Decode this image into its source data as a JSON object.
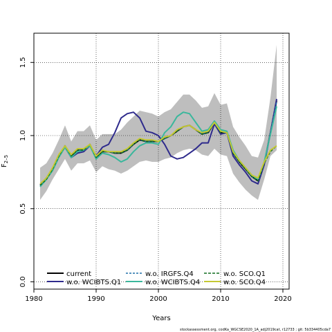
{
  "chart_data": {
    "type": "line",
    "xlabel": "Years",
    "ylabel": "F",
    "ylabel_sub": "2–5",
    "xlim": [
      1980,
      2021
    ],
    "ylim": [
      -0.05,
      1.7
    ],
    "xticks": [
      1980,
      1990,
      2000,
      2010,
      2020
    ],
    "yticks": [
      0.0,
      0.5,
      1.0,
      1.5
    ],
    "ytick_labels": [
      "0.0",
      "0.5",
      "1.0",
      "1.5"
    ],
    "grid": true,
    "legend_position": "bottom-left",
    "footer": "stockassessment.org, codKa_WGCSE2020_1A_adj2019cat, r12733 ; git: 5b334405cda7",
    "x": [
      1981,
      1982,
      1983,
      1984,
      1985,
      1986,
      1987,
      1988,
      1989,
      1990,
      1991,
      1992,
      1993,
      1994,
      1995,
      1996,
      1997,
      1998,
      1999,
      2000,
      2001,
      2002,
      2003,
      2004,
      2005,
      2006,
      2007,
      2008,
      2009,
      2010,
      2011,
      2012,
      2013,
      2014,
      2015,
      2016,
      2017,
      2018,
      2019
    ],
    "confidence_band": {
      "upper": [
        0.78,
        0.81,
        0.88,
        0.97,
        1.07,
        0.96,
        1.03,
        1.03,
        1.07,
        0.97,
        1.01,
        1.01,
        1.01,
        1.04,
        1.09,
        1.13,
        1.17,
        1.16,
        1.15,
        1.13,
        1.16,
        1.18,
        1.23,
        1.28,
        1.28,
        1.24,
        1.19,
        1.2,
        1.29,
        1.21,
        1.22,
        1.06,
        0.99,
        0.93,
        0.86,
        0.85,
        0.97,
        1.26,
        1.62
      ],
      "lower": [
        0.56,
        0.62,
        0.7,
        0.77,
        0.84,
        0.76,
        0.81,
        0.81,
        0.83,
        0.75,
        0.79,
        0.77,
        0.76,
        0.74,
        0.76,
        0.79,
        0.82,
        0.83,
        0.82,
        0.82,
        0.84,
        0.85,
        0.88,
        0.9,
        0.91,
        0.9,
        0.87,
        0.86,
        0.91,
        0.87,
        0.86,
        0.74,
        0.68,
        0.63,
        0.59,
        0.56,
        0.7,
        0.86,
        0.9
      ],
      "color": "#bebebe"
    },
    "series": [
      {
        "name": "current",
        "color": "#000000",
        "dash": "",
        "width": 2,
        "values": [
          0.66,
          0.7,
          0.77,
          0.86,
          0.93,
          0.86,
          0.9,
          0.9,
          0.94,
          0.85,
          0.89,
          0.89,
          0.88,
          0.88,
          0.9,
          0.94,
          0.97,
          0.96,
          0.96,
          0.96,
          0.98,
          1.0,
          1.03,
          1.06,
          1.07,
          1.04,
          1.01,
          1.02,
          1.09,
          1.02,
          1.02,
          0.88,
          0.82,
          0.77,
          0.72,
          0.69,
          0.81,
          1.02,
          1.24
        ]
      },
      {
        "name": "w.o. WCIBTS.Q1",
        "color": "#2e2a8c",
        "dash": "",
        "width": 2,
        "values": [
          0.66,
          0.71,
          0.77,
          0.86,
          0.92,
          0.85,
          0.88,
          0.89,
          0.93,
          0.86,
          0.92,
          0.94,
          1.02,
          1.12,
          1.15,
          1.16,
          1.12,
          1.03,
          1.02,
          1.0,
          0.94,
          0.86,
          0.84,
          0.85,
          0.88,
          0.91,
          0.95,
          0.95,
          1.08,
          1.01,
          1.02,
          0.86,
          0.8,
          0.75,
          0.69,
          0.67,
          0.8,
          1.02,
          1.25
        ]
      },
      {
        "name": "w.o. IRGFS.Q4",
        "color": "#1f6fa8",
        "dash": "3,2",
        "width": 1.5,
        "values": [
          0.66,
          0.7,
          0.77,
          0.86,
          0.93,
          0.86,
          0.9,
          0.9,
          0.94,
          0.85,
          0.89,
          0.89,
          0.88,
          0.88,
          0.9,
          0.94,
          0.97,
          0.96,
          0.96,
          0.96,
          0.98,
          1.0,
          1.03,
          1.06,
          1.07,
          1.04,
          1.01,
          1.02,
          1.09,
          1.02,
          1.02,
          0.88,
          0.82,
          0.77,
          0.72,
          0.69,
          0.81,
          1.02,
          1.23
        ]
      },
      {
        "name": "w.o. WCIBTS.Q4",
        "color": "#3ab79c",
        "dash": "",
        "width": 2,
        "values": [
          0.65,
          0.7,
          0.76,
          0.85,
          0.92,
          0.85,
          0.89,
          0.9,
          0.93,
          0.84,
          0.88,
          0.87,
          0.85,
          0.82,
          0.84,
          0.89,
          0.93,
          0.95,
          0.95,
          0.94,
          1.02,
          1.06,
          1.13,
          1.16,
          1.15,
          1.09,
          1.03,
          1.04,
          1.1,
          1.04,
          1.03,
          0.9,
          0.83,
          0.78,
          0.73,
          0.7,
          0.82,
          1.01,
          1.2
        ]
      },
      {
        "name": "w.o. SCO.Q1",
        "color": "#0f6b1e",
        "dash": "4,2",
        "width": 1.5,
        "values": [
          0.66,
          0.7,
          0.77,
          0.86,
          0.93,
          0.86,
          0.9,
          0.9,
          0.94,
          0.85,
          0.89,
          0.89,
          0.88,
          0.88,
          0.9,
          0.94,
          0.97,
          0.96,
          0.96,
          0.96,
          0.98,
          1.0,
          1.03,
          1.06,
          1.07,
          1.04,
          1.01,
          1.02,
          1.09,
          1.02,
          1.02,
          0.88,
          0.82,
          0.77,
          0.72,
          0.69,
          0.81,
          0.89,
          0.93
        ]
      },
      {
        "name": "w.o. SCO.Q4",
        "color": "#c5c833",
        "dash": "",
        "width": 2,
        "values": [
          0.67,
          0.71,
          0.78,
          0.87,
          0.93,
          0.87,
          0.91,
          0.91,
          0.94,
          0.86,
          0.9,
          0.89,
          0.89,
          0.89,
          0.91,
          0.95,
          0.98,
          0.97,
          0.97,
          0.96,
          0.99,
          1.0,
          1.04,
          1.06,
          1.07,
          1.04,
          1.02,
          1.03,
          1.09,
          1.03,
          1.02,
          0.89,
          0.83,
          0.78,
          0.73,
          0.71,
          0.82,
          0.9,
          0.93
        ]
      }
    ]
  }
}
